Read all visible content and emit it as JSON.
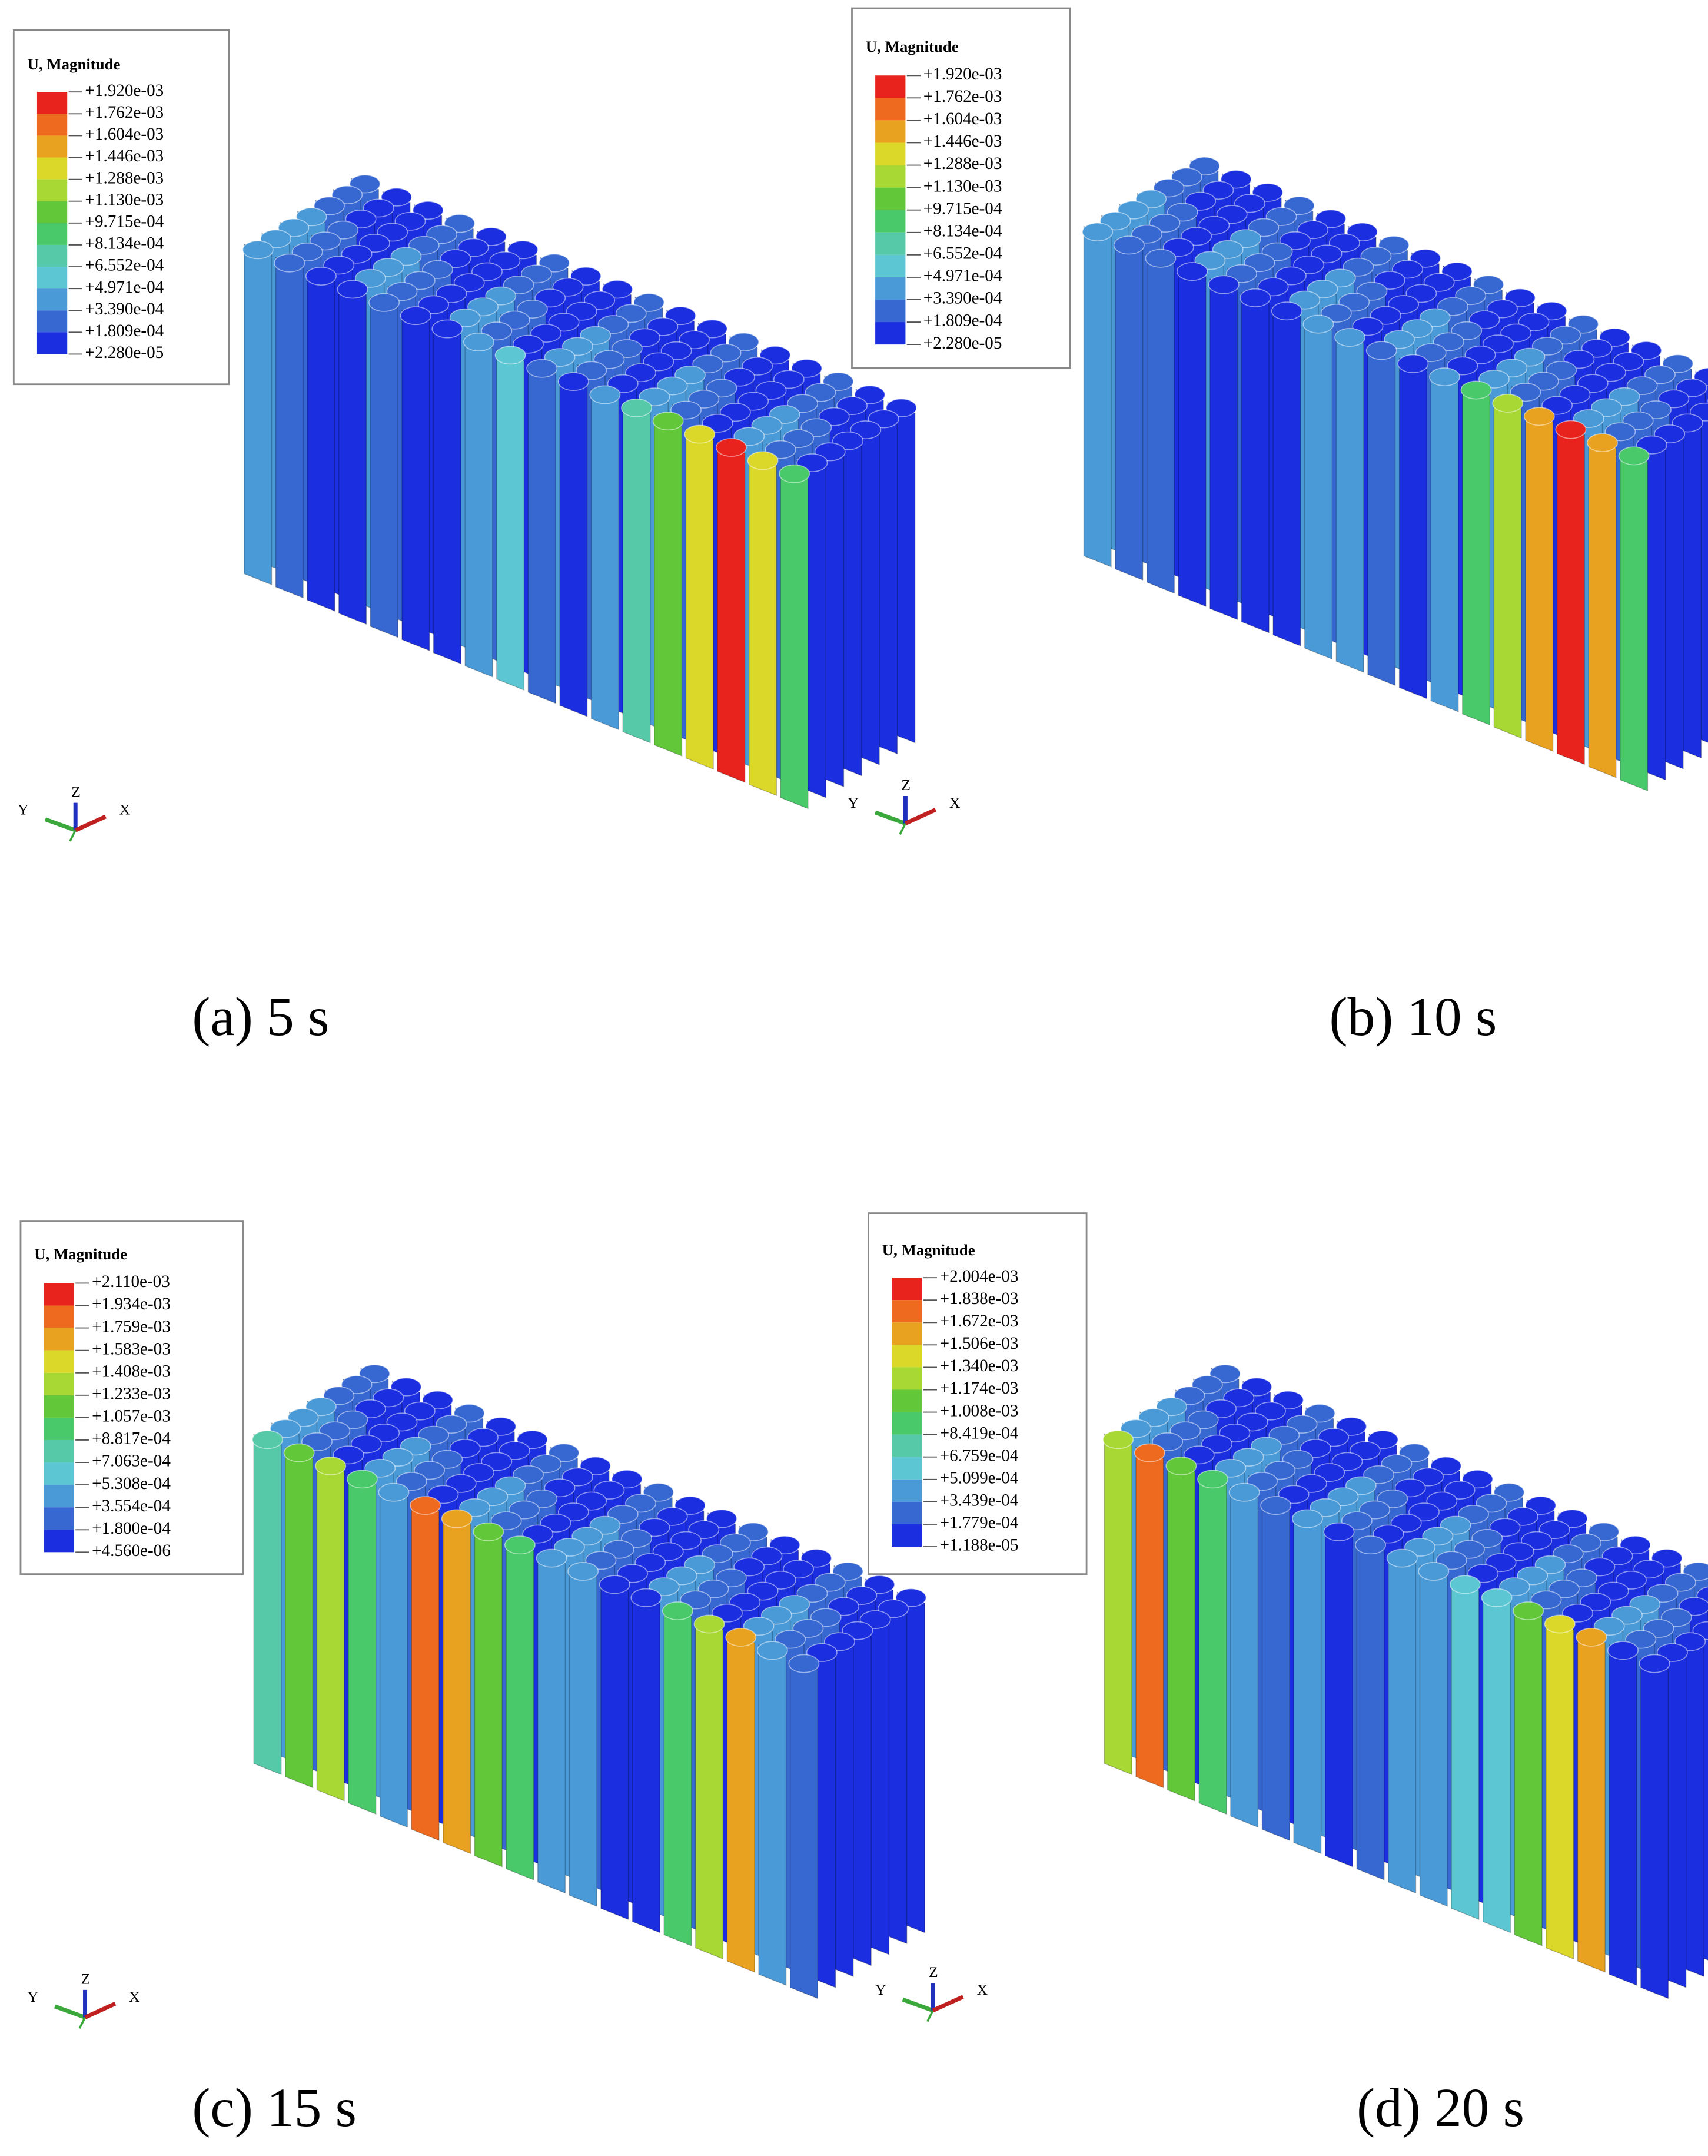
{
  "panels": [
    {
      "legend": {
        "title": "U, Magnitude",
        "labels": [
          "+1.920e-03",
          "+1.762e-03",
          "+1.604e-03",
          "+1.446e-03",
          "+1.288e-03",
          "+1.130e-03",
          "+9.715e-04",
          "+8.134e-04",
          "+6.552e-04",
          "+4.971e-04",
          "+3.390e-04",
          "+1.809e-04",
          "+2.280e-05"
        ]
      },
      "axes": {
        "y": "Y",
        "z": "Z",
        "x": "X"
      },
      "caption": "(a) 5 s"
    },
    {
      "legend": {
        "title": "U, Magnitude",
        "labels": [
          "+1.920e-03",
          "+1.762e-03",
          "+1.604e-03",
          "+1.446e-03",
          "+1.288e-03",
          "+1.130e-03",
          "+9.715e-04",
          "+8.134e-04",
          "+6.552e-04",
          "+4.971e-04",
          "+3.390e-04",
          "+1.809e-04",
          "+2.280e-05"
        ]
      },
      "axes": {
        "y": "Y",
        "z": "Z",
        "x": "X"
      },
      "caption": "(b) 10 s"
    },
    {
      "legend": {
        "title": "U, Magnitude",
        "labels": [
          "+2.110e-03",
          "+1.934e-03",
          "+1.759e-03",
          "+1.583e-03",
          "+1.408e-03",
          "+1.233e-03",
          "+1.057e-03",
          "+8.817e-04",
          "+7.063e-04",
          "+5.308e-04",
          "+3.554e-04",
          "+1.800e-04",
          "+4.560e-06"
        ]
      },
      "axes": {
        "y": "Y",
        "z": "Z",
        "x": "X"
      },
      "caption": "(c) 15 s"
    },
    {
      "legend": {
        "title": "U, Magnitude",
        "labels": [
          "+2.004e-03",
          "+1.838e-03",
          "+1.672e-03",
          "+1.506e-03",
          "+1.340e-03",
          "+1.174e-03",
          "+1.008e-03",
          "+8.419e-04",
          "+6.759e-04",
          "+5.099e-04",
          "+3.439e-04",
          "+1.779e-04",
          "+1.188e-05"
        ]
      },
      "axes": {
        "y": "Y",
        "z": "Z",
        "x": "X"
      },
      "caption": "(d) 20 s"
    }
  ]
}
